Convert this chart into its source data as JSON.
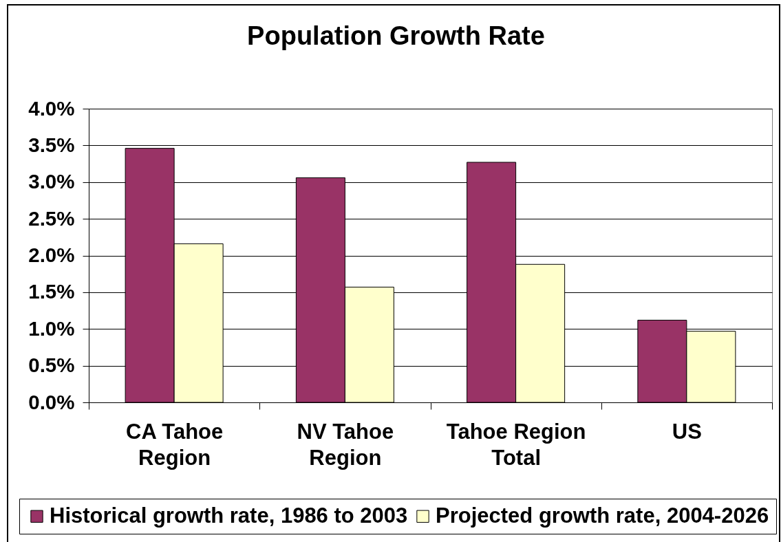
{
  "chart_data": {
    "type": "bar",
    "title": "Population Growth Rate",
    "categories": [
      "CA Tahoe Region",
      "NV Tahoe Region",
      "Tahoe Region Total",
      "US"
    ],
    "series": [
      {
        "name": "Historical growth rate, 1986 to 2003",
        "color": "#993366",
        "values": [
          3.46,
          3.06,
          3.27,
          1.12
        ]
      },
      {
        "name": "Projected growth rate, 2004-2026",
        "color": "#ffffcc",
        "values": [
          2.16,
          1.57,
          1.88,
          0.97
        ]
      }
    ],
    "ylim": [
      0,
      4
    ],
    "yticks": [
      {
        "value": 0,
        "label": "0.0%"
      },
      {
        "value": 0.5,
        "label": "0.5%"
      },
      {
        "value": 1,
        "label": "1.0%"
      },
      {
        "value": 1.5,
        "label": "1.5%"
      },
      {
        "value": 2,
        "label": "2.0%"
      },
      {
        "value": 2.5,
        "label": "2.5%"
      },
      {
        "value": 3,
        "label": "3.0%"
      },
      {
        "value": 3.5,
        "label": "3.5%"
      },
      {
        "value": 4,
        "label": "4.0%"
      }
    ],
    "grid": "y",
    "legend": "bottom"
  }
}
